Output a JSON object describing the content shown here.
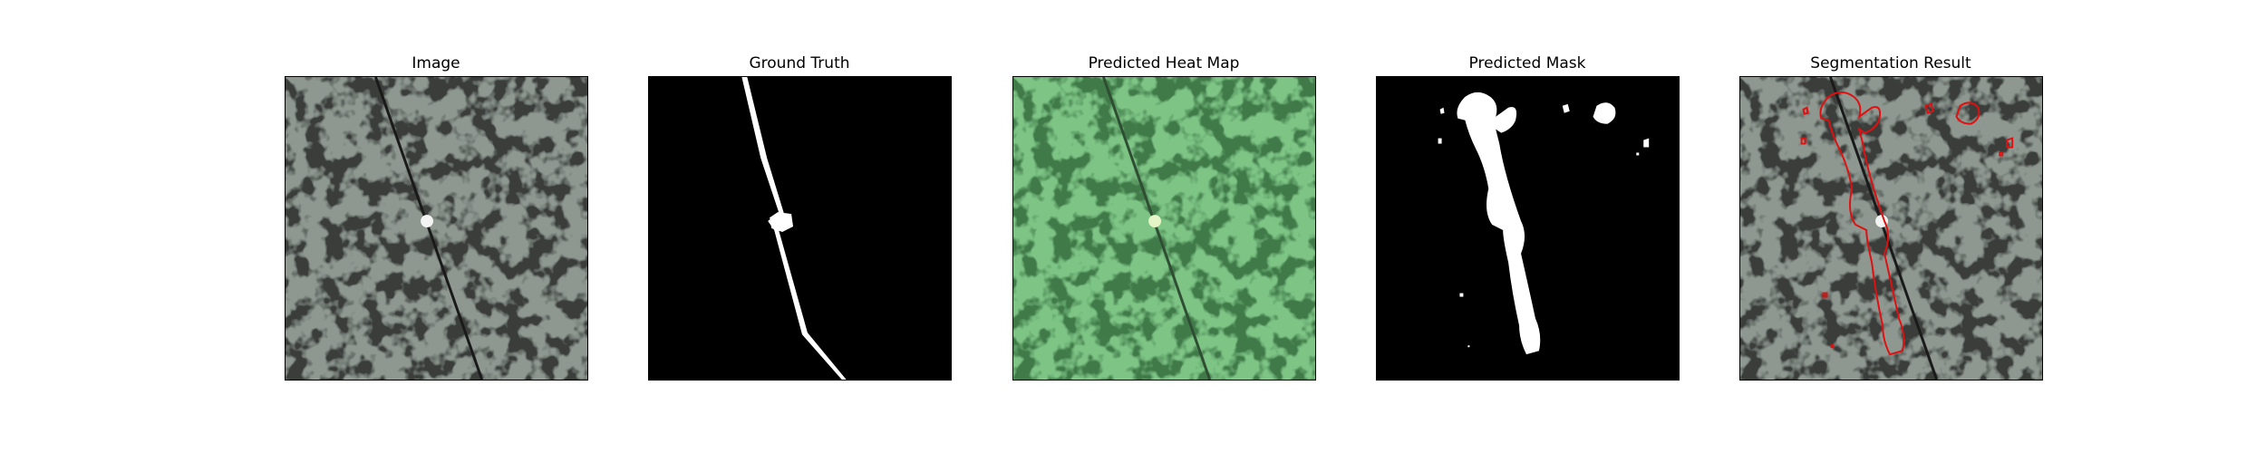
{
  "figure": {
    "panels": [
      {
        "title": "Image"
      },
      {
        "title": "Ground Truth"
      },
      {
        "title": "Predicted Heat Map"
      },
      {
        "title": "Predicted Mask"
      },
      {
        "title": "Segmentation Result"
      }
    ]
  },
  "colors": {
    "background": "#ffffff",
    "texture_base": "#8c968f",
    "texture_dark": "#3c3f3d",
    "mask_foreground": "#ffffff",
    "mask_background": "#000000",
    "heat_overlay": "#78c07e",
    "contour": "#e01010"
  }
}
